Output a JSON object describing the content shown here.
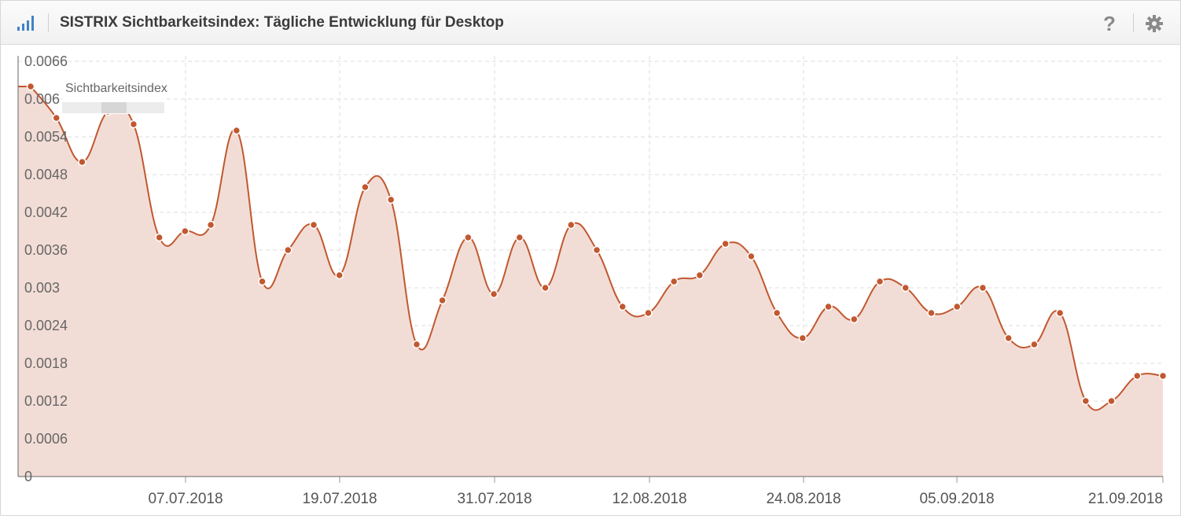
{
  "header": {
    "title": "SISTRIX Sichtbarkeitsindex: Tägliche Entwicklung für Desktop",
    "help_label": "?",
    "icons": [
      "signal-bars-icon",
      "help-icon",
      "gear-icon"
    ]
  },
  "colors": {
    "series": "#c1582f",
    "area_fill": "#f2ddd6",
    "accent_icon": "#3f83c6"
  },
  "chart_data": {
    "type": "area",
    "x_tick_labels": [
      "07.07.2018",
      "19.07.2018",
      "31.07.2018",
      "12.08.2018",
      "24.08.2018",
      "05.09.2018",
      "21.09.2018"
    ],
    "y_tick_labels": [
      "0",
      "0.0006",
      "0.0012",
      "0.0018",
      "0.0024",
      "0.003",
      "0.0036",
      "0.0042",
      "0.0048",
      "0.0054",
      "0.006",
      "0.0066"
    ],
    "ylim": [
      0,
      0.0066
    ],
    "grid": true,
    "tooltip": {
      "label": "Sichtbarkeitsindex",
      "value_obscured": true
    },
    "series": [
      {
        "name": "Sichtbarkeitsindex",
        "values": [
          0.0062,
          0.0057,
          0.005,
          0.0058,
          0.0056,
          0.0038,
          0.0039,
          0.004,
          0.0055,
          0.0031,
          0.0036,
          0.004,
          0.0032,
          0.0046,
          0.0044,
          0.0021,
          0.0028,
          0.0038,
          0.0029,
          0.0038,
          0.003,
          0.004,
          0.0036,
          0.0027,
          0.0026,
          0.0031,
          0.0032,
          0.0037,
          0.0035,
          0.0026,
          0.0022,
          0.0027,
          0.0025,
          0.0031,
          0.003,
          0.0026,
          0.0027,
          0.003,
          0.0022,
          0.0021,
          0.0026,
          0.0012,
          0.0012,
          0.0016,
          0.0016
        ]
      }
    ]
  }
}
